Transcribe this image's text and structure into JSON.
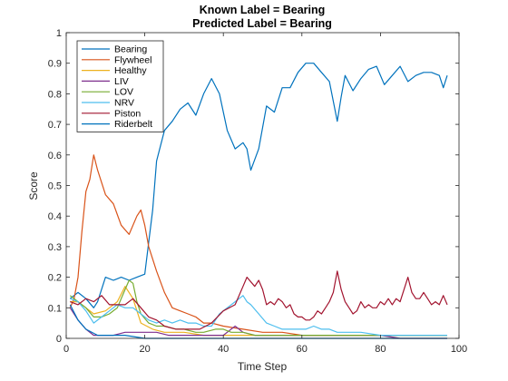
{
  "chart_data": {
    "type": "line",
    "title": [
      "Known Label = Bearing",
      "Predicted Label = Bearing"
    ],
    "xlabel": "Time Step",
    "ylabel": "Score",
    "xlim": [
      0,
      100
    ],
    "ylim": [
      0,
      1
    ],
    "xticks": [
      "0",
      "20",
      "40",
      "60",
      "80",
      "100"
    ],
    "yticks": [
      "0",
      "0.1",
      "0.2",
      "0.3",
      "0.4",
      "0.5",
      "0.6",
      "0.7",
      "0.8",
      "0.9",
      "1"
    ],
    "grid": false,
    "legend_position": "top-left",
    "series": [
      {
        "name": "Bearing",
        "color": "#0072BD",
        "x": [
          1,
          3,
          5,
          7,
          8,
          10,
          12,
          14,
          16,
          18,
          20,
          22,
          23,
          25,
          27,
          29,
          31,
          33,
          35,
          37,
          39,
          41,
          43,
          45,
          46,
          47,
          49,
          51,
          53,
          55,
          57,
          59,
          61,
          63,
          65,
          67,
          69,
          70,
          71,
          73,
          75,
          77,
          79,
          81,
          83,
          85,
          87,
          89,
          91,
          93,
          95,
          96,
          97
        ],
        "y": [
          0.13,
          0.15,
          0.13,
          0.1,
          0.12,
          0.2,
          0.19,
          0.2,
          0.19,
          0.2,
          0.21,
          0.42,
          0.58,
          0.68,
          0.71,
          0.75,
          0.77,
          0.73,
          0.8,
          0.85,
          0.8,
          0.68,
          0.62,
          0.64,
          0.62,
          0.55,
          0.62,
          0.76,
          0.74,
          0.82,
          0.82,
          0.87,
          0.9,
          0.9,
          0.87,
          0.84,
          0.71,
          0.79,
          0.86,
          0.81,
          0.85,
          0.88,
          0.89,
          0.83,
          0.86,
          0.89,
          0.84,
          0.86,
          0.87,
          0.87,
          0.86,
          0.82,
          0.86
        ]
      },
      {
        "name": "Flywheel",
        "color": "#D95319",
        "x": [
          1,
          2,
          3,
          4,
          5,
          6,
          7,
          8,
          10,
          12,
          14,
          16,
          18,
          19,
          20,
          21,
          23,
          25,
          27,
          29,
          31,
          33,
          35,
          37,
          40,
          45,
          50,
          55,
          60,
          65,
          70,
          75,
          80,
          85,
          90,
          95,
          97
        ],
        "y": [
          0.1,
          0.13,
          0.2,
          0.35,
          0.48,
          0.52,
          0.6,
          0.55,
          0.47,
          0.44,
          0.37,
          0.34,
          0.4,
          0.42,
          0.37,
          0.3,
          0.22,
          0.15,
          0.1,
          0.09,
          0.08,
          0.07,
          0.05,
          0.05,
          0.04,
          0.03,
          0.02,
          0.02,
          0.01,
          0.01,
          0.01,
          0.01,
          0.01,
          0.01,
          0.01,
          0.01,
          0.01
        ]
      },
      {
        "name": "Healthy",
        "color": "#EDB120",
        "x": [
          1,
          3,
          5,
          7,
          10,
          13,
          15,
          17,
          19,
          22,
          25,
          30,
          35,
          40,
          45,
          50,
          55,
          60,
          65,
          70,
          75,
          80,
          85,
          90,
          95,
          97
        ],
        "y": [
          0.12,
          0.12,
          0.1,
          0.08,
          0.09,
          0.12,
          0.17,
          0.13,
          0.05,
          0.03,
          0.02,
          0.02,
          0.01,
          0.01,
          0.01,
          0.01,
          0.01,
          0.01,
          0.01,
          0.01,
          0.01,
          0.01,
          0.01,
          0.01,
          0.01,
          0.01
        ]
      },
      {
        "name": "LIV",
        "color": "#7E2F8E",
        "x": [
          1,
          3,
          5,
          7,
          9,
          12,
          15,
          17,
          20,
          23,
          26,
          30,
          35,
          40,
          43,
          45,
          48,
          50,
          55,
          60,
          65,
          70,
          75,
          80,
          85,
          90,
          95,
          97
        ],
        "y": [
          0.1,
          0.06,
          0.03,
          0.01,
          0.01,
          0.01,
          0.02,
          0.02,
          0.02,
          0.02,
          0.01,
          0.01,
          0.01,
          0.01,
          0.04,
          0.02,
          0.01,
          0.01,
          0.01,
          0.01,
          0.01,
          0.01,
          0.01,
          0.01,
          0.0,
          0.0,
          0.0,
          0.0
        ]
      },
      {
        "name": "LOV",
        "color": "#77AC30",
        "x": [
          1,
          3,
          5,
          7,
          9,
          11,
          13,
          15,
          16,
          17,
          18,
          19,
          21,
          23,
          25,
          28,
          30,
          33,
          35,
          38,
          40,
          42,
          45,
          48,
          50,
          55,
          60,
          65,
          70,
          75,
          80,
          85,
          90,
          95,
          97
        ],
        "y": [
          0.14,
          0.12,
          0.1,
          0.07,
          0.07,
          0.08,
          0.1,
          0.16,
          0.19,
          0.18,
          0.12,
          0.08,
          0.05,
          0.04,
          0.04,
          0.03,
          0.03,
          0.02,
          0.02,
          0.03,
          0.03,
          0.02,
          0.02,
          0.01,
          0.01,
          0.01,
          0.01,
          0.01,
          0.01,
          0.01,
          0.01,
          0.01,
          0.01,
          0.01,
          0.01
        ]
      },
      {
        "name": "NRV",
        "color": "#4DBEEE",
        "x": [
          1,
          3,
          5,
          7,
          9,
          11,
          13,
          15,
          17,
          19,
          21,
          23,
          25,
          27,
          29,
          31,
          33,
          35,
          37,
          39,
          41,
          43,
          45,
          46,
          47,
          49,
          51,
          53,
          55,
          57,
          59,
          61,
          63,
          65,
          67,
          69,
          71,
          73,
          75,
          80,
          85,
          90,
          95,
          97
        ],
        "y": [
          0.13,
          0.12,
          0.09,
          0.05,
          0.07,
          0.09,
          0.11,
          0.1,
          0.1,
          0.08,
          0.06,
          0.05,
          0.06,
          0.05,
          0.06,
          0.05,
          0.05,
          0.04,
          0.04,
          0.08,
          0.1,
          0.12,
          0.14,
          0.12,
          0.11,
          0.08,
          0.05,
          0.04,
          0.03,
          0.03,
          0.03,
          0.03,
          0.04,
          0.03,
          0.03,
          0.02,
          0.02,
          0.02,
          0.02,
          0.01,
          0.01,
          0.01,
          0.01,
          0.01
        ]
      },
      {
        "name": "Piston",
        "color": "#A2142F",
        "x": [
          1,
          3,
          5,
          7,
          9,
          11,
          13,
          15,
          17,
          19,
          21,
          23,
          25,
          28,
          31,
          34,
          37,
          40,
          43,
          45,
          46,
          48,
          49,
          50,
          51,
          52,
          53,
          54,
          55,
          56,
          57,
          58,
          59,
          60,
          61,
          62,
          63,
          64,
          65,
          66,
          67,
          68,
          69,
          70,
          71,
          72,
          73,
          74,
          75,
          76,
          77,
          78,
          79,
          80,
          81,
          82,
          83,
          84,
          85,
          86,
          87,
          88,
          89,
          90,
          91,
          92,
          93,
          94,
          95,
          96,
          97
        ],
        "y": [
          0.12,
          0.11,
          0.13,
          0.12,
          0.14,
          0.11,
          0.11,
          0.11,
          0.13,
          0.1,
          0.07,
          0.06,
          0.04,
          0.03,
          0.03,
          0.03,
          0.05,
          0.09,
          0.11,
          0.17,
          0.2,
          0.17,
          0.19,
          0.16,
          0.11,
          0.12,
          0.11,
          0.13,
          0.12,
          0.1,
          0.11,
          0.08,
          0.07,
          0.07,
          0.06,
          0.06,
          0.07,
          0.09,
          0.08,
          0.1,
          0.12,
          0.15,
          0.22,
          0.16,
          0.12,
          0.1,
          0.08,
          0.09,
          0.12,
          0.1,
          0.11,
          0.1,
          0.1,
          0.12,
          0.11,
          0.13,
          0.11,
          0.13,
          0.12,
          0.16,
          0.2,
          0.15,
          0.13,
          0.13,
          0.15,
          0.13,
          0.11,
          0.12,
          0.11,
          0.14,
          0.11
        ]
      },
      {
        "name": "Riderbelt",
        "color": "#0072BD",
        "x": [
          1,
          3,
          5,
          8,
          10,
          13,
          15,
          20,
          25,
          30,
          35,
          40,
          45,
          50,
          55,
          60,
          65,
          70,
          75,
          80,
          85,
          90,
          95,
          97
        ],
        "y": [
          0.11,
          0.06,
          0.03,
          0.01,
          0.01,
          0.01,
          0.01,
          0.0,
          0.0,
          0.0,
          0.0,
          0.0,
          0.0,
          0.0,
          0.0,
          0.0,
          0.0,
          0.0,
          0.0,
          0.0,
          0.0,
          0.0,
          0.0,
          0.0
        ]
      }
    ]
  }
}
